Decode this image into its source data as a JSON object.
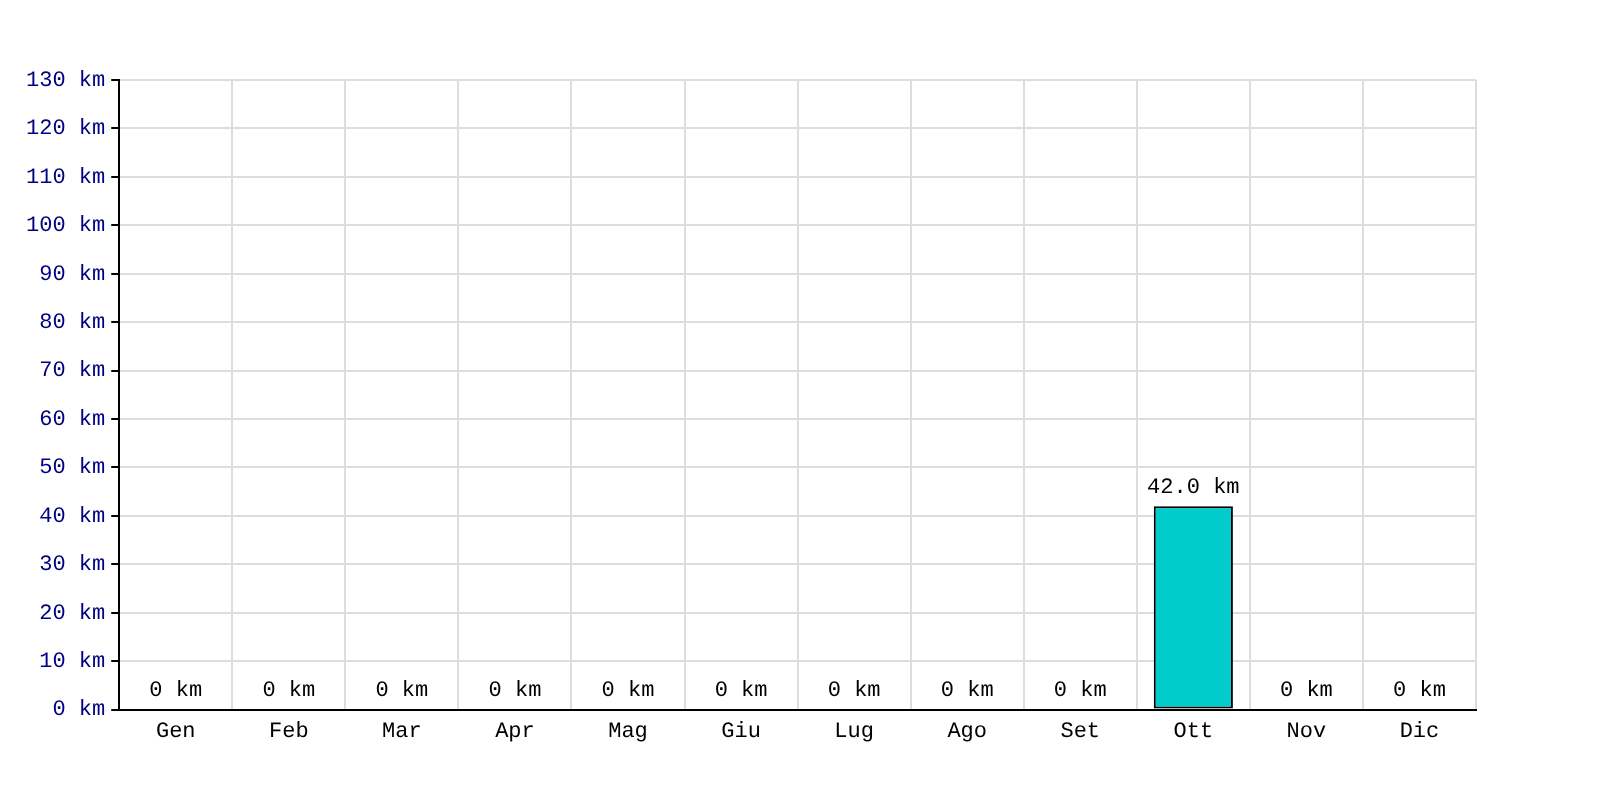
{
  "chart_data": {
    "type": "bar",
    "categories": [
      "Gen",
      "Feb",
      "Mar",
      "Apr",
      "Mag",
      "Giu",
      "Lug",
      "Ago",
      "Set",
      "Ott",
      "Nov",
      "Dic"
    ],
    "values": [
      0,
      0,
      0,
      0,
      0,
      0,
      0,
      0,
      0,
      42.0,
      0,
      0
    ],
    "value_labels": [
      "0 km",
      "0 km",
      "0 km",
      "0 km",
      "0 km",
      "0 km",
      "0 km",
      "0 km",
      "0 km",
      "42.0 km",
      "0 km",
      "0 km"
    ],
    "color": "#00cccc",
    "ylim": [
      0,
      130
    ],
    "yticks": [
      {
        "value": 0,
        "label": "0 km"
      },
      {
        "value": 10,
        "label": "10 km"
      },
      {
        "value": 20,
        "label": "20 km"
      },
      {
        "value": 30,
        "label": "30 km"
      },
      {
        "value": 40,
        "label": "40 km"
      },
      {
        "value": 50,
        "label": "50 km"
      },
      {
        "value": 60,
        "label": "60 km"
      },
      {
        "value": 70,
        "label": "70 km"
      },
      {
        "value": 80,
        "label": "80 km"
      },
      {
        "value": 90,
        "label": "90 km"
      },
      {
        "value": 100,
        "label": "100 km"
      },
      {
        "value": 110,
        "label": "110 km"
      },
      {
        "value": 120,
        "label": "120 km"
      },
      {
        "value": 130,
        "label": "130 km"
      }
    ],
    "grid": true
  }
}
